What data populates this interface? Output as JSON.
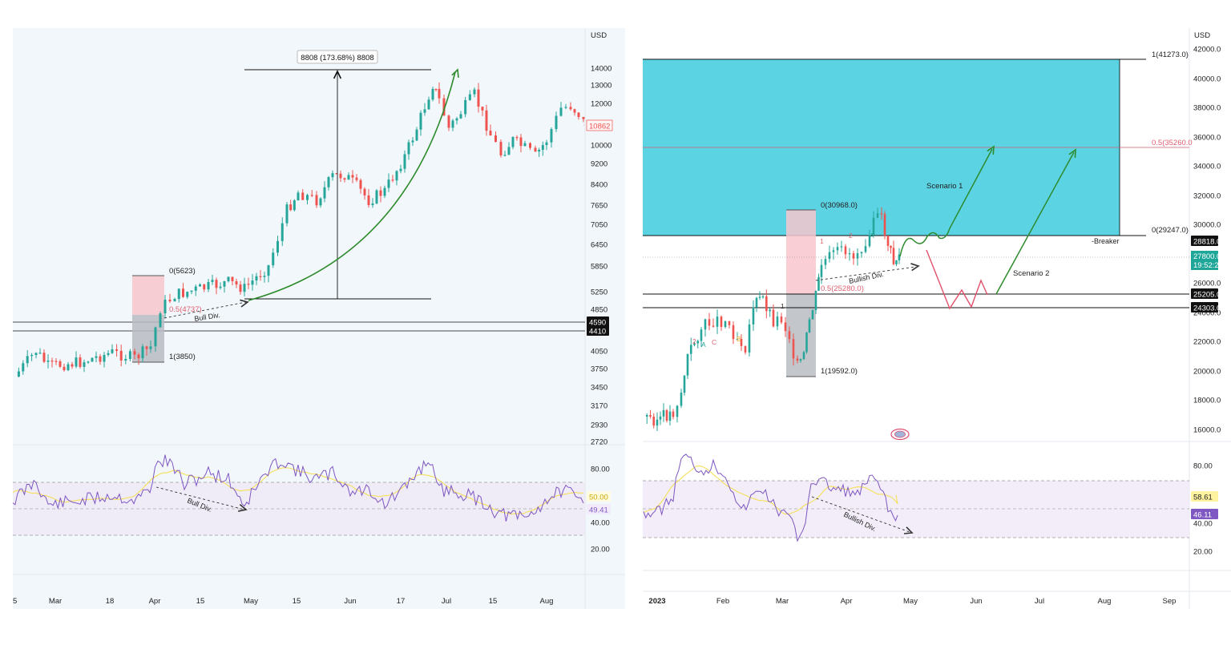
{
  "currency": "USD",
  "colors": {
    "up": "#26a69a",
    "down": "#ef5350",
    "rsi_line": "#7e57c2",
    "rsi_ma": "#f5e05a",
    "rsi_band": "#ede7f6",
    "supply_zone": "#5bd3e3",
    "green_arrow": "#2e8b2e",
    "red_path": "#e0506b",
    "fib_red": "#e06070",
    "left_bg": "#f2f7fb"
  },
  "left": {
    "price_ticks": [
      "14000",
      "13000",
      "12000",
      "10000",
      "9200",
      "8400",
      "7650",
      "7050",
      "6450",
      "5850",
      "5250",
      "4850",
      "4050",
      "3750",
      "3450",
      "3170",
      "2930",
      "2720"
    ],
    "rsi_ticks": [
      "80.00",
      "40.00",
      "20.00"
    ],
    "x_ticks": [
      "5",
      "Mar",
      "18",
      "Apr",
      "15",
      "May",
      "15",
      "Jun",
      "17",
      "Jul",
      "15",
      "Aug"
    ],
    "last_price": "10862",
    "level_labels": [
      "4590",
      "4410"
    ],
    "rsi_values": [
      "49.41",
      "50.00"
    ],
    "measure_label": "8808 (173.68%) 8808",
    "fib": {
      "top": "0(5623)",
      "mid": "0.5(4737)",
      "bottom": "1(3850)"
    },
    "price_div_label": "Bull Div.",
    "rsi_div_label": "Bull Div."
  },
  "right": {
    "price_ticks": [
      "42000.0",
      "40000.0",
      "38000.0",
      "36000.0",
      "34000.0",
      "32000.0",
      "30000.0",
      "26000.0",
      "24000.0",
      "22000.0",
      "20000.0",
      "18000.0",
      "16000.0"
    ],
    "rsi_ticks": [
      "80.00",
      "40.00",
      "20.00"
    ],
    "x_ticks": [
      "2023",
      "Feb",
      "Mar",
      "Apr",
      "May",
      "Jun",
      "Jul",
      "Aug",
      "Sep"
    ],
    "level_labels": {
      "a": "28818.0",
      "b": "27800.0",
      "b_time": "19:52:2",
      "c": "25205.0",
      "d": "24303.0"
    },
    "rsi_values": {
      "ma": "58.61",
      "rsi": "46.11"
    },
    "fib_top": "1(41273.0)",
    "fib_mid": "0.5(35260.0",
    "fib_bottom": "0(29247.0)",
    "breaker_label": "-Breaker",
    "box_fib": {
      "top": "0(30968.0)",
      "mid": "0.5(25280.0)",
      "bottom": "1(19592.0)"
    },
    "scenario1": "Scenario 1",
    "scenario2": "Scenario 2",
    "price_div_label": "Bullish Div.",
    "rsi_div_label": "Bullish Div.",
    "wave_labels": [
      "2",
      "A",
      "C",
      "B",
      "1",
      "1",
      "2",
      "A"
    ]
  },
  "chart_data": [
    {
      "type": "candlestick",
      "title": "",
      "currency": "USD",
      "x_ticks": [
        "5",
        "Mar",
        "18",
        "Apr",
        "15",
        "May",
        "15",
        "Jun",
        "17",
        "Jul",
        "15",
        "Aug"
      ],
      "ylim": [
        2720,
        14000
      ],
      "log_scale": true,
      "anchor_points": [
        {
          "x": "Feb",
          "close": 3600
        },
        {
          "x": "Mar",
          "close": 3900
        },
        {
          "x": "Apr",
          "close": 4100
        },
        {
          "x": "Apr",
          "close": 5000
        },
        {
          "x": "May",
          "close": 5300
        },
        {
          "x": "May",
          "close": 7800
        },
        {
          "x": "Jun",
          "close": 8700
        },
        {
          "x": "Jun",
          "close": 7700
        },
        {
          "x": "Jun",
          "close": 11000
        },
        {
          "x": "Jul",
          "close": 12700
        },
        {
          "x": "Jul",
          "close": 11500
        },
        {
          "x": "Aug",
          "close": 9600
        },
        {
          "x": "Aug",
          "close": 11800
        },
        {
          "x": "Aug",
          "close": 10862
        }
      ],
      "last_price": 10862,
      "rsi": {
        "ylim": [
          20,
          80
        ],
        "last": 49.41
      }
    },
    {
      "type": "candlestick",
      "title": "",
      "currency": "USD",
      "x_ticks": [
        "2023",
        "Feb",
        "Mar",
        "Apr",
        "May",
        "Jun",
        "Jul",
        "Aug",
        "Sep"
      ],
      "ylim": [
        16000,
        42000
      ],
      "anchor_points": [
        {
          "x": "2023",
          "close": 16600
        },
        {
          "x": "Jan",
          "close": 17000
        },
        {
          "x": "Jan",
          "close": 21000
        },
        {
          "x": "Feb",
          "close": 23500
        },
        {
          "x": "Feb",
          "close": 22000
        },
        {
          "x": "Mar",
          "close": 23400
        },
        {
          "x": "Mar",
          "close": 19800
        },
        {
          "x": "Mar",
          "close": 26500
        },
        {
          "x": "Apr",
          "close": 28000
        },
        {
          "x": "Apr",
          "close": 30300
        },
        {
          "x": "Apr",
          "close": 27800
        }
      ],
      "last_price": 27800,
      "rsi": {
        "ylim": [
          20,
          80
        ],
        "last": 46.11,
        "ma": 58.61
      }
    }
  ]
}
